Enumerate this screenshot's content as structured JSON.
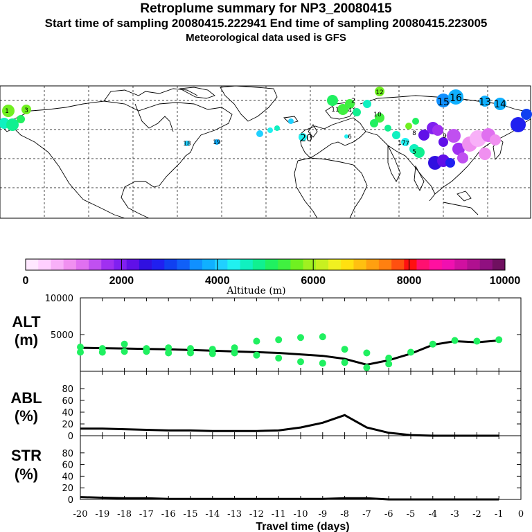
{
  "header": {
    "title": "Retroplume summary for NP3_20080415",
    "sampling_line": "Start time of sampling 20080415.222941     End time of sampling 20080415.223005",
    "met_line": "Meteorological data used is GFS"
  },
  "colorbar": {
    "label": "Altitude (m)",
    "tick_labels": [
      "0",
      "2000",
      "4000",
      "6000",
      "8000",
      "10000"
    ],
    "colors": [
      "#ffe8ff",
      "#ffd0ff",
      "#f8b0f8",
      "#f090f0",
      "#e070f0",
      "#c050f0",
      "#a030f0",
      "#8020f0",
      "#6010e8",
      "#3010e0",
      "#2020f0",
      "#1040f0",
      "#1060f8",
      "#1090ff",
      "#10b0ff",
      "#20d0ff",
      "#20f0f0",
      "#10f0c0",
      "#10f090",
      "#20f060",
      "#40f040",
      "#70f020",
      "#a0f020",
      "#c8f020",
      "#f0f020",
      "#ffe010",
      "#ffc010",
      "#ffa010",
      "#ff8010",
      "#ff5010",
      "#ff1010",
      "#ff1070",
      "#ff10a0",
      "#f010b0",
      "#d010a0",
      "#b01090",
      "#901080",
      "#701060"
    ]
  },
  "map": {
    "labels": [
      "1",
      "2",
      "3",
      "4",
      "5",
      "6",
      "7",
      "8",
      "9",
      "10",
      "11",
      "12",
      "13",
      "14",
      "15",
      "16",
      "17",
      "18",
      "19",
      "20"
    ]
  },
  "chart_data": [
    {
      "type": "line",
      "panel": "ALT",
      "ylabel": "ALT\n(m)",
      "ylim": [
        0,
        10000
      ],
      "yticks": [
        10000,
        5000
      ],
      "x": [
        -20,
        -19,
        -18,
        -17,
        -16,
        -15,
        -14,
        -13,
        -12,
        -11,
        -10,
        -9,
        -8,
        -7,
        -6,
        -5,
        -4,
        -3,
        -2,
        -1
      ],
      "series": [
        {
          "name": "mean altitude",
          "color": "#000000",
          "values": [
            3200,
            3150,
            3100,
            3050,
            3000,
            2900,
            2800,
            2700,
            2600,
            2500,
            2300,
            2100,
            1700,
            900,
            1500,
            2400,
            3600,
            4100,
            3950,
            4200
          ]
        },
        {
          "name": "cluster altitude",
          "color": "#20f060",
          "points": [
            [
              -20,
              3300
            ],
            [
              -20,
              2600
            ],
            [
              -19,
              3100
            ],
            [
              -19,
              2600
            ],
            [
              -18,
              3700
            ],
            [
              -18,
              2700
            ],
            [
              -17,
              3100
            ],
            [
              -17,
              2700
            ],
            [
              -16,
              3200
            ],
            [
              -16,
              2500
            ],
            [
              -15,
              3100
            ],
            [
              -15,
              2500
            ],
            [
              -14,
              3000
            ],
            [
              -14,
              2400
            ],
            [
              -13,
              3200
            ],
            [
              -13,
              2500
            ],
            [
              -12,
              4100
            ],
            [
              -12,
              2200
            ],
            [
              -11,
              4300
            ],
            [
              -11,
              1800
            ],
            [
              -10,
              4600
            ],
            [
              -10,
              1300
            ],
            [
              -9,
              4700
            ],
            [
              -9,
              1100
            ],
            [
              -8,
              3000
            ],
            [
              -8,
              1200
            ],
            [
              -7,
              2500
            ],
            [
              -7,
              500
            ],
            [
              -6,
              1800
            ],
            [
              -6,
              1000
            ],
            [
              -5,
              2600
            ],
            [
              -4,
              3700
            ],
            [
              -3,
              4200
            ],
            [
              -2,
              4100
            ],
            [
              -1,
              4300
            ]
          ]
        }
      ]
    },
    {
      "type": "line",
      "panel": "ABL",
      "ylabel": "ABL\n(%)",
      "ylim": [
        0,
        100
      ],
      "yticks": [
        80,
        60,
        40,
        20,
        0
      ],
      "x": [
        -20,
        -19,
        -18,
        -17,
        -16,
        -15,
        -14,
        -13,
        -12,
        -11,
        -10,
        -9,
        -8,
        -7,
        -6,
        -5,
        -4,
        -3,
        -2,
        -1
      ],
      "series": [
        {
          "name": "boundary layer fraction",
          "color": "#000000",
          "values": [
            12,
            12,
            11,
            10,
            9,
            9,
            8,
            8,
            8,
            9,
            14,
            22,
            35,
            14,
            5,
            1,
            0,
            0,
            0,
            0
          ]
        }
      ]
    },
    {
      "type": "line",
      "panel": "STR",
      "ylabel": "STR\n(%)",
      "ylim": [
        0,
        100
      ],
      "yticks": [
        80,
        60,
        40,
        20,
        0
      ],
      "x": [
        -20,
        -19,
        -18,
        -17,
        -16,
        -15,
        -14,
        -13,
        -12,
        -11,
        -10,
        -9,
        -8,
        -7,
        -6,
        -5,
        -4,
        -3,
        -2,
        -1
      ],
      "series": [
        {
          "name": "stratosphere fraction",
          "color": "#000000",
          "values": [
            4,
            3,
            2,
            2,
            1,
            1,
            1,
            1,
            1,
            1,
            1,
            1,
            2,
            2,
            0,
            0,
            0,
            0,
            0,
            0
          ]
        }
      ]
    },
    {
      "type": "axis",
      "panel": "x-axis",
      "xlabel": "Travel time (days)",
      "xlim": [
        -20,
        0
      ],
      "tick_labels": [
        "-20",
        "-19",
        "-18",
        "-17",
        "-16",
        "-15",
        "-14",
        "-13",
        "-12",
        "-11",
        "-10",
        "-9",
        "-8",
        "-7",
        "-6",
        "-5",
        "-4",
        "-3",
        "-2",
        "-1",
        "0"
      ]
    }
  ]
}
